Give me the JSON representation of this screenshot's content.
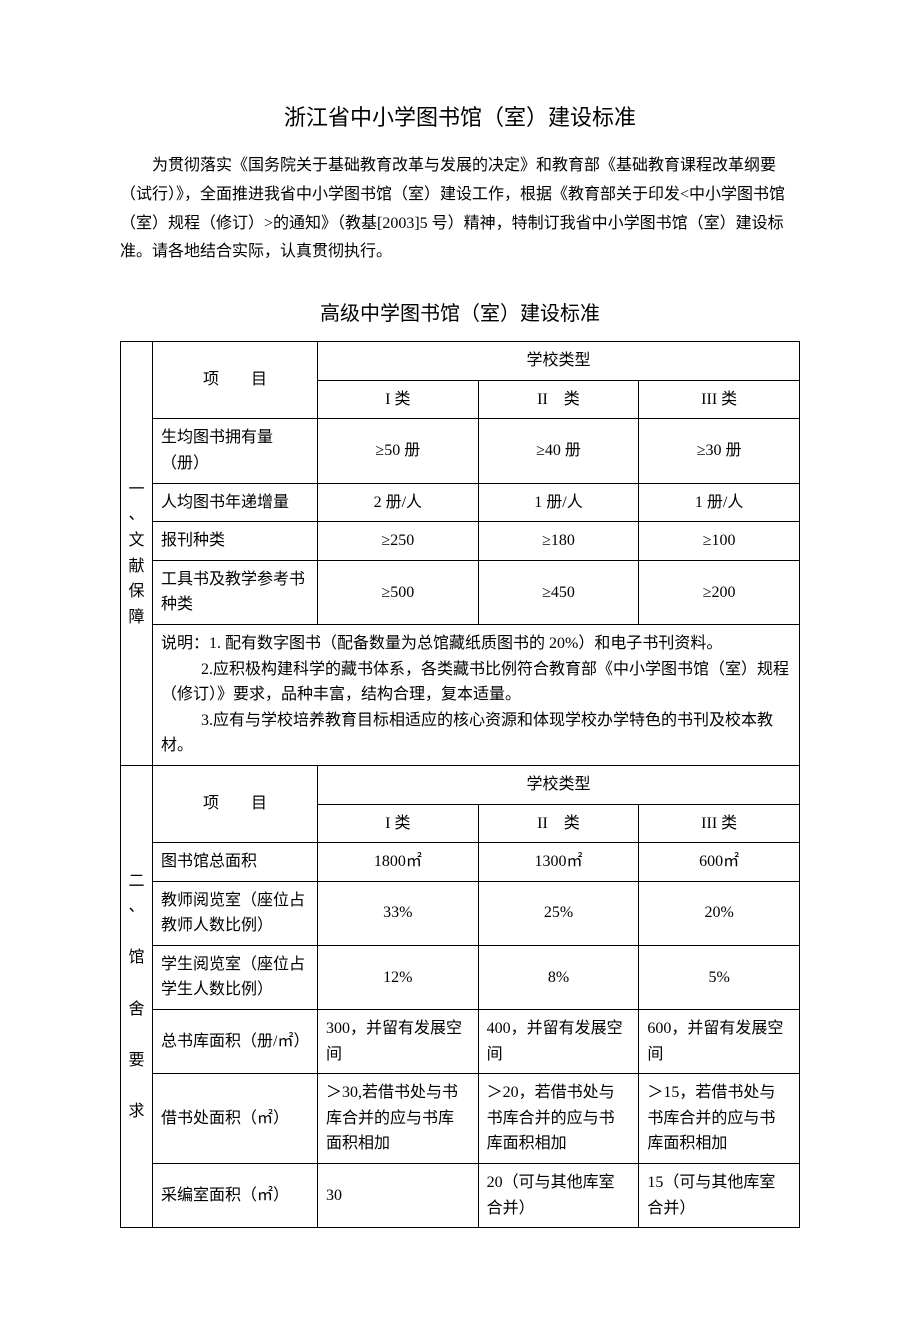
{
  "title": "浙江省中小学图书馆（室）建设标准",
  "intro": "为贯彻落实《国务院关于基础教育改革与发展的决定》和教育部《基础教育课程改革纲要（试行）》，全面推进我省中小学图书馆（室）建设工作，根据《教育部关于印发<中小学图书馆（室）规程（修订）>的通知》（教基[2003]5 号）精神，特制订我省中小学图书馆（室）建设标准。请各地结合实际，认真贯彻执行。",
  "subtitle": "高级中学图书馆（室）建设标准",
  "col_project": "项　　目",
  "col_schooltype": "学校类型",
  "col_type1": "I 类",
  "col_type2": "II　类",
  "col_type3": "III 类",
  "section1": {
    "label_lines": [
      "一、",
      "文",
      "献",
      "保",
      "障"
    ],
    "rows": [
      {
        "name": "生均图书拥有量（册）",
        "v1": "≥50 册",
        "v2": "≥40 册",
        "v3": "≥30 册"
      },
      {
        "name": "人均图书年递增量",
        "v1": "2 册/人",
        "v2": "1 册/人",
        "v3": "1 册/人"
      },
      {
        "name": "报刊种类",
        "v1": "≥250",
        "v2": "≥180",
        "v3": "≥100"
      },
      {
        "name": "工具书及教学参考书种类",
        "v1": "≥500",
        "v2": "≥450",
        "v3": "≥200"
      }
    ],
    "note1": "说明：1. 配有数字图书（配备数量为总馆藏纸质图书的 20%）和电子书刊资料。",
    "note2": "2.应积极构建科学的藏书体系，各类藏书比例符合教育部《中小学图书馆（室）规程（修订）》要求，品种丰富，结构合理，复本适量。",
    "note3": "3.应有与学校培养教育目标相适应的核心资源和体现学校办学特色的书刊及校本教材。"
  },
  "section2": {
    "label_lines": [
      "二、",
      "",
      "馆",
      "",
      "舍",
      "",
      "要",
      "",
      "求"
    ],
    "rows": [
      {
        "name": "图书馆总面积",
        "v1": "1800㎡",
        "v2": "1300㎡",
        "v3": "600㎡"
      },
      {
        "name": "教师阅览室（座位占教师人数比例）",
        "v1": "33%",
        "v2": "25%",
        "v3": "20%"
      },
      {
        "name": "学生阅览室（座位占学生人数比例）",
        "v1": "12%",
        "v2": "8%",
        "v3": "5%"
      },
      {
        "name": "总书库面积（册/㎡）",
        "v1": "300，并留有发展空间",
        "v2": "400，并留有发展空间",
        "v3": "600，并留有发展空间"
      },
      {
        "name": "借书处面积（㎡）",
        "v1": "＞30,若借书处与书库合并的应与书库面积相加",
        "v2": "＞20，若借书处与书库合并的应与书库面积相加",
        "v3": "＞15，若借书处与书库合并的应与书库面积相加"
      },
      {
        "name": "采编室面积（㎡）",
        "v1": "30",
        "v2": "20（可与其他库室合并）",
        "v3": "15（可与其他库室合并）"
      }
    ]
  }
}
